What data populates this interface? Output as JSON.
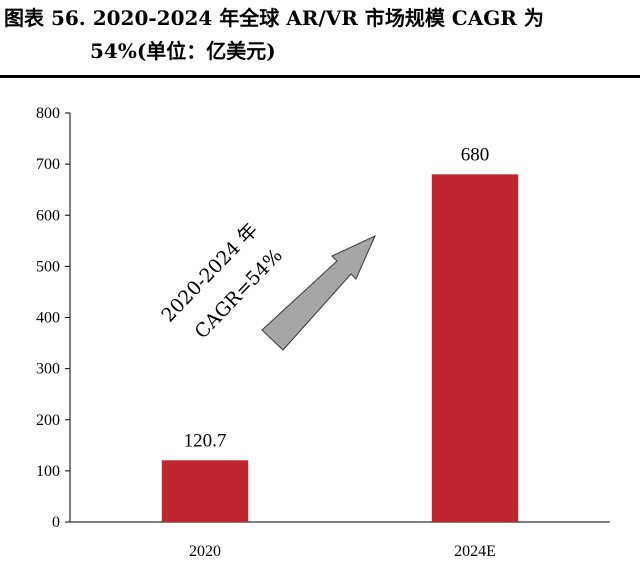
{
  "title": {
    "line1": "图表 56. 2020-2024 年全球 AR/VR 市场规模 CAGR 为",
    "line2": "54%(单位：亿美元)"
  },
  "chart_data": {
    "type": "bar",
    "categories": [
      "2020",
      "2024E"
    ],
    "values": [
      120.7,
      680
    ],
    "data_labels": [
      "120.7",
      "680"
    ],
    "ylim": [
      0,
      800
    ],
    "yticks": [
      0,
      100,
      200,
      300,
      400,
      500,
      600,
      700,
      800
    ],
    "bar_color": "#c0262e",
    "grid": false,
    "annotation": {
      "line1": "2020-2024 年",
      "line2": "CAGR=54%",
      "arrow_color": "#a6a6a6"
    }
  }
}
